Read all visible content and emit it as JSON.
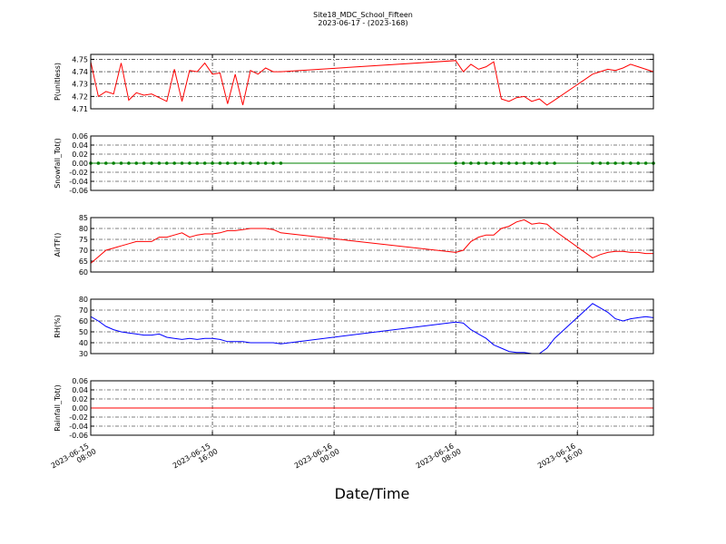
{
  "chart_data": {
    "title": "Site18_MDC_School_Fifteen",
    "subtitle": "2023-06-17 - (2023-168)",
    "xlabel": "Date/Time",
    "x": [
      "2023-06-15T08:00",
      "2023-06-15T08:30",
      "2023-06-15T09:00",
      "2023-06-15T09:30",
      "2023-06-15T10:00",
      "2023-06-15T10:30",
      "2023-06-15T11:00",
      "2023-06-15T11:30",
      "2023-06-15T12:00",
      "2023-06-15T12:30",
      "2023-06-15T13:00",
      "2023-06-15T13:30",
      "2023-06-15T14:00",
      "2023-06-15T14:30",
      "2023-06-15T15:00",
      "2023-06-15T15:30",
      "2023-06-15T16:00",
      "2023-06-15T16:30",
      "2023-06-15T17:00",
      "2023-06-15T17:30",
      "2023-06-15T18:00",
      "2023-06-15T18:30",
      "2023-06-15T19:00",
      "2023-06-15T19:30",
      "2023-06-15T20:00",
      "2023-06-15T20:30",
      "2023-06-16T08:00",
      "2023-06-16T08:30",
      "2023-06-16T09:00",
      "2023-06-16T09:30",
      "2023-06-16T10:00",
      "2023-06-16T10:30",
      "2023-06-16T11:00",
      "2023-06-16T11:30",
      "2023-06-16T12:00",
      "2023-06-16T12:30",
      "2023-06-16T13:00",
      "2023-06-16T13:30",
      "2023-06-16T14:00",
      "2023-06-16T14:30",
      "2023-06-16T17:00",
      "2023-06-16T17:30",
      "2023-06-16T18:00",
      "2023-06-16T18:30",
      "2023-06-16T19:00",
      "2023-06-16T19:30",
      "2023-06-16T20:00",
      "2023-06-16T20:30",
      "2023-06-16T21:00"
    ],
    "xlim": [
      "2023-06-15T08:00",
      "2023-06-16T21:00"
    ],
    "xticks": [
      {
        "value": "2023-06-15T08:00",
        "date": "2023-06-15",
        "time": "08:00"
      },
      {
        "value": "2023-06-15T16:00",
        "date": "2023-06-15",
        "time": "16:00"
      },
      {
        "value": "2023-06-16T00:00",
        "date": "2023-06-16",
        "time": "00:00"
      },
      {
        "value": "2023-06-16T08:00",
        "date": "2023-06-16",
        "time": "08:00"
      },
      {
        "value": "2023-06-16T16:00",
        "date": "2023-06-16",
        "time": "16:00"
      }
    ],
    "grid": true,
    "panels": [
      {
        "type": "line",
        "ylabel": "P(unitless)",
        "ylim": [
          4.71,
          4.754
        ],
        "yticks": [
          4.71,
          4.72,
          4.73,
          4.74,
          4.75
        ],
        "series": [
          {
            "color": "#ff0000",
            "markers": false,
            "values": [
              4.748,
              4.72,
              4.724,
              4.722,
              4.747,
              4.717,
              4.723,
              4.721,
              4.722,
              4.719,
              4.716,
              4.742,
              4.716,
              4.741,
              4.74,
              4.747,
              4.738,
              4.739,
              4.714,
              4.738,
              4.713,
              4.741,
              4.738,
              4.743,
              4.74,
              4.74,
              4.749,
              4.74,
              4.746,
              4.742,
              4.744,
              4.748,
              4.718,
              4.716,
              4.719,
              4.72,
              4.716,
              4.718,
              4.713,
              4.717,
              4.738,
              4.74,
              4.742,
              4.741,
              4.743,
              4.746,
              4.744,
              4.742,
              4.74
            ]
          }
        ]
      },
      {
        "type": "line",
        "ylabel": "Snowfall_Tot()",
        "ylim": [
          -0.06,
          0.06
        ],
        "yticks": [
          -0.06,
          -0.04,
          -0.02,
          {
            "value": 0,
            "label": "0.00"
          },
          0.02,
          0.04,
          0.06
        ],
        "series": [
          {
            "color": "#008000",
            "markers": true,
            "values": [
              0,
              0,
              0,
              0,
              0,
              0,
              0,
              0,
              0,
              0,
              0,
              0,
              0,
              0,
              0,
              0,
              0,
              0,
              0,
              0,
              0,
              0,
              0,
              0,
              0,
              0,
              0,
              0,
              0,
              0,
              0,
              0,
              0,
              0,
              0,
              0,
              0,
              0,
              0,
              0,
              0,
              0,
              0,
              0,
              0,
              0,
              0,
              0,
              0
            ]
          }
        ]
      },
      {
        "type": "line",
        "ylabel": "AirTF()",
        "ylim": [
          60,
          85
        ],
        "yticks": [
          60,
          65,
          70,
          75,
          80,
          85
        ],
        "series": [
          {
            "color": "#ff0000",
            "markers": false,
            "values": [
              64,
              67,
              70,
              71,
              72,
              73,
              74,
              74,
              74,
              76,
              76,
              77,
              78,
              76,
              77,
              77.5,
              77.5,
              78,
              79,
              79,
              79.5,
              80,
              80,
              80,
              79.5,
              78,
              69,
              70,
              74,
              76,
              77,
              77,
              80,
              81,
              83,
              84,
              82,
              82.5,
              82,
              79,
              66.5,
              68,
              69,
              69.5,
              69.5,
              69,
              69,
              68.5,
              68.5
            ]
          }
        ]
      },
      {
        "type": "line",
        "ylabel": "RH(%)",
        "ylim": [
          30,
          80
        ],
        "yticks": [
          30,
          40,
          50,
          60,
          70,
          80
        ],
        "series": [
          {
            "color": "#0000ff",
            "markers": false,
            "values": [
              64,
              60,
              55,
              52,
              50,
              49,
              48,
              47,
              47,
              48,
              45,
              44,
              43,
              44,
              43,
              44,
              44,
              43,
              41,
              41,
              41,
              40,
              40,
              40,
              40,
              39,
              59,
              58,
              52,
              48,
              44,
              38,
              35,
              32,
              31,
              31,
              30,
              30,
              35,
              44,
              76,
              72,
              68,
              62,
              60,
              62,
              63,
              64,
              63
            ]
          }
        ]
      },
      {
        "type": "line",
        "ylabel": "Rainfall_Tot()",
        "ylim": [
          -0.06,
          0.06
        ],
        "yticks": [
          -0.06,
          -0.04,
          -0.02,
          {
            "value": 0,
            "label": "0.00"
          },
          0.02,
          0.04,
          0.06
        ],
        "series": [
          {
            "color": "#ff0000",
            "markers": false,
            "values": [
              0,
              0,
              0,
              0,
              0,
              0,
              0,
              0,
              0,
              0,
              0,
              0,
              0,
              0,
              0,
              0,
              0,
              0,
              0,
              0,
              0,
              0,
              0,
              0,
              0,
              0,
              0,
              0,
              0,
              0,
              0,
              0,
              0,
              0,
              0,
              0,
              0,
              0,
              0,
              0,
              0,
              0,
              0,
              0,
              0,
              0,
              0,
              0,
              0
            ]
          }
        ]
      }
    ]
  }
}
